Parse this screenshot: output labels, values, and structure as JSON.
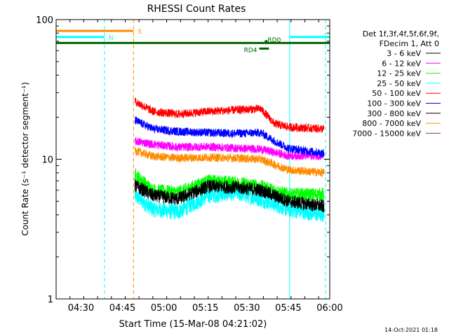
{
  "chart_data": {
    "type": "line",
    "title": "RHESSI Count Rates",
    "xlabel": "Start Time (15-Mar-08 04:21:02)",
    "ylabel": "Count Rate (s⁻¹ detector segment⁻¹)",
    "yscale": "log",
    "ylim": [
      1,
      100
    ],
    "xlim_minutes": [
      261.0,
      360.0
    ],
    "x_tick_labels": [
      {
        "t": 270,
        "label": "04:30"
      },
      {
        "t": 285,
        "label": "04:45"
      },
      {
        "t": 300,
        "label": "05:00"
      },
      {
        "t": 315,
        "label": "05:15"
      },
      {
        "t": 330,
        "label": "05:30"
      },
      {
        "t": 345,
        "label": "05:45"
      },
      {
        "t": 360,
        "label": "06:00"
      }
    ],
    "y_tick_labels": [
      {
        "v": 1,
        "label": "1"
      },
      {
        "v": 10,
        "label": "10"
      },
      {
        "v": 100,
        "label": "100"
      }
    ],
    "legend_header": [
      "Det 1f,3f,4f,5f,6f,9f,",
      "FDecim 1, Att 0"
    ],
    "legend_position": "right",
    "data_start_minute": 289.5,
    "series": [
      {
        "name": "3 - 6 keV",
        "color": "#000000",
        "points": [
          [
            289.5,
            6.5
          ],
          [
            296,
            5.5
          ],
          [
            305,
            5.2
          ],
          [
            316,
            6.4
          ],
          [
            326,
            6.3
          ],
          [
            335,
            6.0
          ],
          [
            345,
            5.0
          ],
          [
            358,
            4.6
          ]
        ]
      },
      {
        "name": "6 - 12 keV",
        "color": "#ff00ff",
        "points": [
          [
            289.5,
            13.5
          ],
          [
            296,
            12.8
          ],
          [
            305,
            12.2
          ],
          [
            316,
            12.3
          ],
          [
            326,
            12.0
          ],
          [
            335,
            11.8
          ],
          [
            345,
            10.6
          ],
          [
            358,
            10.6
          ]
        ]
      },
      {
        "name": "12 - 25 keV",
        "color": "#00ff00",
        "points": [
          [
            289.5,
            7.8
          ],
          [
            296,
            6.0
          ],
          [
            305,
            5.8
          ],
          [
            316,
            7.0
          ],
          [
            326,
            6.8
          ],
          [
            335,
            6.4
          ],
          [
            345,
            5.6
          ],
          [
            358,
            5.6
          ]
        ]
      },
      {
        "name": "25 - 50 keV",
        "color": "#00ffff",
        "points": [
          [
            289.5,
            5.5
          ],
          [
            296,
            4.4
          ],
          [
            305,
            4.2
          ],
          [
            316,
            5.5
          ],
          [
            326,
            5.8
          ],
          [
            335,
            5.2
          ],
          [
            345,
            4.4
          ],
          [
            358,
            4.0
          ]
        ]
      },
      {
        "name": "50 - 100 keV",
        "color": "#ff0000",
        "points": [
          [
            289.5,
            26
          ],
          [
            296,
            22
          ],
          [
            305,
            21
          ],
          [
            316,
            22
          ],
          [
            326,
            22.5
          ],
          [
            335,
            23
          ],
          [
            340,
            18
          ],
          [
            345,
            17
          ],
          [
            358,
            16.5
          ]
        ]
      },
      {
        "name": "100 - 300 keV",
        "color": "#0000ff",
        "points": [
          [
            289.5,
            19
          ],
          [
            296,
            16.5
          ],
          [
            305,
            15.8
          ],
          [
            316,
            15.5
          ],
          [
            326,
            15.3
          ],
          [
            335,
            15.5
          ],
          [
            340,
            13.5
          ],
          [
            345,
            12.0
          ],
          [
            358,
            11.0
          ]
        ]
      },
      {
        "name": "300 - 800 keV",
        "color": "#000000",
        "points": []
      },
      {
        "name": "800 - 7000 keV",
        "color": "#ff8c00",
        "points": [
          [
            289.5,
            11.5
          ],
          [
            296,
            10.5
          ],
          [
            305,
            10.2
          ],
          [
            316,
            10.3
          ],
          [
            326,
            10.2
          ],
          [
            335,
            10.0
          ],
          [
            345,
            8.4
          ],
          [
            358,
            8.0
          ]
        ]
      },
      {
        "name": "7000 - 15000 keV",
        "color": "#8b4513",
        "points": []
      }
    ],
    "attenuator_bars": [
      {
        "label": "S",
        "color": "#ff8c00",
        "y": 83,
        "t0": 261.0,
        "t1": 289.0
      },
      {
        "label": "N",
        "color": "#00ffff",
        "y": 75,
        "t0": 261.0,
        "t1": 278.5
      },
      {
        "label": "",
        "color": "#00ffff",
        "y": 75,
        "t0": 345.5,
        "t1": 360.0
      },
      {
        "label": "",
        "color": "#006400",
        "y": 68,
        "t0": 261.0,
        "t1": 360.0
      },
      {
        "label": "RD4",
        "color": "#006400",
        "y": 62,
        "t0": 334.5,
        "t1": 338.0
      },
      {
        "label": "RD0",
        "color": "#006400",
        "y": 70,
        "t0": 336.5,
        "t1": 337.5
      }
    ],
    "vertical_markers": [
      {
        "t": 261.0,
        "color": "#00ffff",
        "style": "solid"
      },
      {
        "t": 278.5,
        "color": "#00ffff",
        "style": "dashed"
      },
      {
        "t": 289.0,
        "color": "#ff8c00",
        "style": "dashed"
      },
      {
        "t": 345.5,
        "color": "#00ffff",
        "style": "solid"
      },
      {
        "t": 358.5,
        "color": "#00ffff",
        "style": "dashed"
      }
    ]
  },
  "footer_date": "14-Oct-2021 01:18"
}
